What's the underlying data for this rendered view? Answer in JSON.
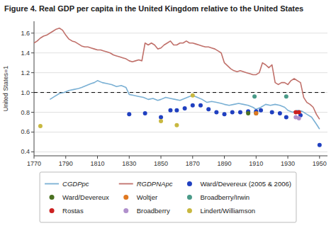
{
  "chart_data": {
    "type": "line",
    "title": "Figure 4. Real GDP per capita in the United Kingdom relative to the United States",
    "y_label": "United States=1",
    "xlim": [
      1770,
      1955
    ],
    "ylim": [
      0.36,
      1.72
    ],
    "xticks": [
      1770,
      1790,
      1810,
      1830,
      1850,
      1870,
      1890,
      1910,
      1930,
      1950
    ],
    "yticks": [
      0.4,
      0.6,
      0.8,
      {
        "value": 1.0,
        "label": "1.0"
      },
      1.2,
      1.4,
      1.6
    ],
    "grid": "y",
    "legend": "bottom",
    "hline": 1.0,
    "series": [
      {
        "name": "CGDPpc",
        "type": "line",
        "color": "#7ab0d4",
        "x": [
          1780,
          1783,
          1786,
          1789,
          1792,
          1795,
          1798,
          1800,
          1803,
          1806,
          1808,
          1810,
          1813,
          1816,
          1819,
          1822,
          1825,
          1828,
          1830,
          1833,
          1836,
          1839,
          1842,
          1845,
          1848,
          1850,
          1853,
          1856,
          1859,
          1862,
          1865,
          1868,
          1870,
          1873,
          1876,
          1879,
          1882,
          1885,
          1888,
          1890,
          1893,
          1896,
          1899,
          1902,
          1905,
          1908,
          1910,
          1913,
          1916,
          1919,
          1922,
          1925,
          1928,
          1930,
          1933,
          1936,
          1939,
          1942,
          1945,
          1948,
          1950
        ],
        "values": [
          0.93,
          0.96,
          0.99,
          1.0,
          1.02,
          1.03,
          1.04,
          1.05,
          1.07,
          1.09,
          1.1,
          1.12,
          1.1,
          1.09,
          1.08,
          1.06,
          1.07,
          1.05,
          0.98,
          0.97,
          0.96,
          0.95,
          0.93,
          0.94,
          0.92,
          0.93,
          0.95,
          0.94,
          0.93,
          0.92,
          0.94,
          0.96,
          0.97,
          0.95,
          0.93,
          0.9,
          0.91,
          0.9,
          0.89,
          0.88,
          0.87,
          0.88,
          0.89,
          0.88,
          0.87,
          0.85,
          0.83,
          0.85,
          0.88,
          0.87,
          0.88,
          0.87,
          0.85,
          0.82,
          0.8,
          0.82,
          0.81,
          0.78,
          0.75,
          0.68,
          0.63
        ]
      },
      {
        "name": "RGDPNApc",
        "type": "line",
        "color": "#c0706a",
        "x": [
          1770,
          1772,
          1774,
          1776,
          1778,
          1780,
          1782,
          1784,
          1786,
          1788,
          1790,
          1792,
          1794,
          1796,
          1798,
          1800,
          1802,
          1804,
          1806,
          1808,
          1810,
          1812,
          1814,
          1816,
          1818,
          1820,
          1822,
          1824,
          1826,
          1828,
          1830,
          1832,
          1834,
          1836,
          1838,
          1840,
          1842,
          1844,
          1846,
          1848,
          1850,
          1852,
          1854,
          1856,
          1858,
          1860,
          1862,
          1864,
          1866,
          1868,
          1870,
          1872,
          1874,
          1876,
          1878,
          1880,
          1882,
          1884,
          1886,
          1888,
          1890,
          1892,
          1894,
          1896,
          1898,
          1900,
          1902,
          1904,
          1906,
          1908,
          1910,
          1912,
          1914,
          1916,
          1918,
          1920,
          1922,
          1924,
          1926,
          1928,
          1930,
          1932,
          1934,
          1936,
          1938,
          1940,
          1942,
          1944,
          1946,
          1948,
          1950
        ],
        "values": [
          1.5,
          1.52,
          1.55,
          1.57,
          1.58,
          1.6,
          1.62,
          1.64,
          1.65,
          1.63,
          1.58,
          1.54,
          1.52,
          1.51,
          1.49,
          1.47,
          1.46,
          1.46,
          1.45,
          1.44,
          1.43,
          1.43,
          1.42,
          1.41,
          1.4,
          1.38,
          1.37,
          1.36,
          1.35,
          1.34,
          1.32,
          1.31,
          1.32,
          1.33,
          1.32,
          1.5,
          1.48,
          1.5,
          1.48,
          1.44,
          1.45,
          1.48,
          1.5,
          1.52,
          1.48,
          1.48,
          1.5,
          1.5,
          1.52,
          1.5,
          1.5,
          1.49,
          1.48,
          1.47,
          1.46,
          1.46,
          1.45,
          1.44,
          1.42,
          1.4,
          1.3,
          1.27,
          1.24,
          1.22,
          1.21,
          1.22,
          1.21,
          1.2,
          1.19,
          1.18,
          1.18,
          1.2,
          1.3,
          1.28,
          1.25,
          1.28,
          1.1,
          1.08,
          1.1,
          1.1,
          1.08,
          1.12,
          1.14,
          1.12,
          1.1,
          0.95,
          0.9,
          0.88,
          0.85,
          0.78,
          0.73
        ]
      },
      {
        "name": "Ward/Devereux (2005 & 2006)",
        "type": "scatter",
        "marker": "circle",
        "color": "#2040c0",
        "x": [
          1830,
          1840,
          1850,
          1856,
          1860,
          1865,
          1870,
          1875,
          1880,
          1885,
          1890,
          1895,
          1900,
          1905,
          1910,
          1913,
          1920,
          1925,
          1929,
          1938,
          1950
        ],
        "values": [
          0.78,
          0.79,
          0.75,
          0.82,
          0.82,
          0.84,
          0.87,
          0.87,
          0.83,
          0.8,
          0.78,
          0.8,
          0.8,
          0.81,
          0.81,
          0.82,
          0.8,
          0.79,
          0.75,
          0.77,
          0.47
        ]
      },
      {
        "name": "Ward/Devereux",
        "type": "scatter",
        "marker": "circle",
        "color": "#4a7020",
        "x": [
          1905,
          1910
        ],
        "values": [
          0.79,
          0.79
        ]
      },
      {
        "name": "Woltjer",
        "type": "scatter",
        "marker": "circle",
        "color": "#e07820",
        "x": [
          1910
        ],
        "values": [
          0.79
        ]
      },
      {
        "name": "Broadberry/Irwin",
        "type": "scatter",
        "marker": "circle",
        "color": "#4a9a88",
        "x": [
          1909,
          1929
        ],
        "values": [
          0.96,
          0.96
        ]
      },
      {
        "name": "Rostas",
        "type": "scatter",
        "marker": "circle",
        "color": "#cc2020",
        "x": [
          1935,
          1937
        ],
        "values": [
          0.8,
          0.8
        ]
      },
      {
        "name": "Broadberry",
        "type": "scatter",
        "marker": "circle",
        "color": "#b090cc",
        "x": [
          1935,
          1937
        ],
        "values": [
          0.75,
          0.74
        ]
      },
      {
        "name": "Lindert/Williamson",
        "type": "scatter",
        "marker": "circle",
        "color": "#c8b840",
        "x": [
          1774,
          1850,
          1860,
          1870
        ],
        "values": [
          0.66,
          0.71,
          0.67,
          0.97
        ]
      }
    ]
  }
}
